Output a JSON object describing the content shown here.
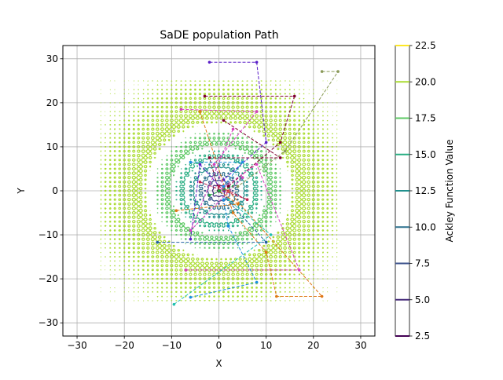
{
  "chart_data": {
    "type": "contour",
    "title": "SaDE population Path",
    "xlabel": "X",
    "ylabel": "Y",
    "xlim": [
      -33,
      33
    ],
    "ylim": [
      -33,
      33
    ],
    "xticks": [
      -30,
      -20,
      -10,
      0,
      10,
      20,
      30
    ],
    "yticks": [
      -30,
      -20,
      -10,
      0,
      10,
      20,
      30
    ],
    "grid": true,
    "contour": {
      "function": "Ackley",
      "domain": [
        -25,
        25
      ],
      "levels": [
        2.5,
        5.0,
        7.5,
        10.0,
        12.5,
        15.0,
        17.5,
        20.0,
        22.5
      ],
      "colormap": "viridis"
    },
    "colorbar": {
      "label": "Ackley Function Value",
      "ticks": [
        2.5,
        5.0,
        7.5,
        10.0,
        12.5,
        15.0,
        17.5,
        20.0,
        22.5
      ]
    },
    "paths": [
      {
        "color": "#5a1fc8",
        "points": [
          [
            -2,
            29.2
          ],
          [
            8,
            29.2
          ],
          [
            10,
            11
          ],
          [
            1,
            2.5
          ]
        ]
      },
      {
        "color": "#8b9a5a",
        "points": [
          [
            21.8,
            27.1
          ],
          [
            25.2,
            27.1
          ],
          [
            14,
            9
          ],
          [
            4,
            1
          ]
        ]
      },
      {
        "color": "#800030",
        "points": [
          [
            -3,
            21.5
          ],
          [
            16,
            21.5
          ],
          [
            13,
            11
          ],
          [
            2,
            1
          ]
        ]
      },
      {
        "color": "#800030",
        "points": [
          [
            1,
            16
          ],
          [
            13,
            7.5
          ],
          [
            -2,
            7.5
          ],
          [
            0,
            0
          ]
        ]
      },
      {
        "color": "#d63fc0",
        "points": [
          [
            -8,
            18.5
          ],
          [
            8,
            18
          ],
          [
            -1,
            6
          ],
          [
            1,
            1
          ]
        ]
      },
      {
        "color": "#e07818",
        "points": [
          [
            -4,
            18
          ],
          [
            3,
            -5
          ],
          [
            10,
            -14
          ],
          [
            12.2,
            -24
          ],
          [
            21.8,
            -24
          ],
          [
            2,
            0
          ]
        ]
      },
      {
        "color": "#d63fc0",
        "points": [
          [
            -7,
            -18
          ],
          [
            17,
            -18
          ],
          [
            8,
            6
          ],
          [
            0,
            0
          ]
        ]
      },
      {
        "color": "#5a1fc8",
        "points": [
          [
            -6,
            -11
          ],
          [
            -4,
            6
          ],
          [
            1,
            0
          ]
        ]
      },
      {
        "color": "#1a8fe0",
        "points": [
          [
            -6,
            -24.2
          ],
          [
            8,
            -20.8
          ],
          [
            2,
            -8
          ],
          [
            1,
            -2
          ]
        ]
      },
      {
        "color": "#20c0b0",
        "points": [
          [
            -9.5,
            -25.8
          ],
          [
            11,
            -10
          ],
          [
            2,
            -2
          ]
        ]
      },
      {
        "color": "#2060a0",
        "points": [
          [
            -13,
            -11.7
          ],
          [
            10,
            -11.7
          ],
          [
            0,
            0
          ]
        ]
      },
      {
        "color": "#e07818",
        "points": [
          [
            -9,
            -4.5
          ],
          [
            4,
            -3
          ],
          [
            0,
            0
          ]
        ]
      },
      {
        "color": "#1a8fe0",
        "points": [
          [
            -6,
            6.5
          ],
          [
            5,
            6.5
          ],
          [
            1,
            1
          ]
        ]
      },
      {
        "color": "#c02050",
        "points": [
          [
            -4,
            2
          ],
          [
            6,
            -2
          ],
          [
            0,
            1
          ]
        ]
      },
      {
        "color": "#20a040",
        "points": [
          [
            -2,
            -1
          ],
          [
            3,
            1
          ],
          [
            0,
            0
          ]
        ]
      },
      {
        "color": "#d63fc0",
        "points": [
          [
            3,
            14
          ],
          [
            -6,
            -9
          ],
          [
            5,
            3
          ]
        ]
      }
    ]
  }
}
